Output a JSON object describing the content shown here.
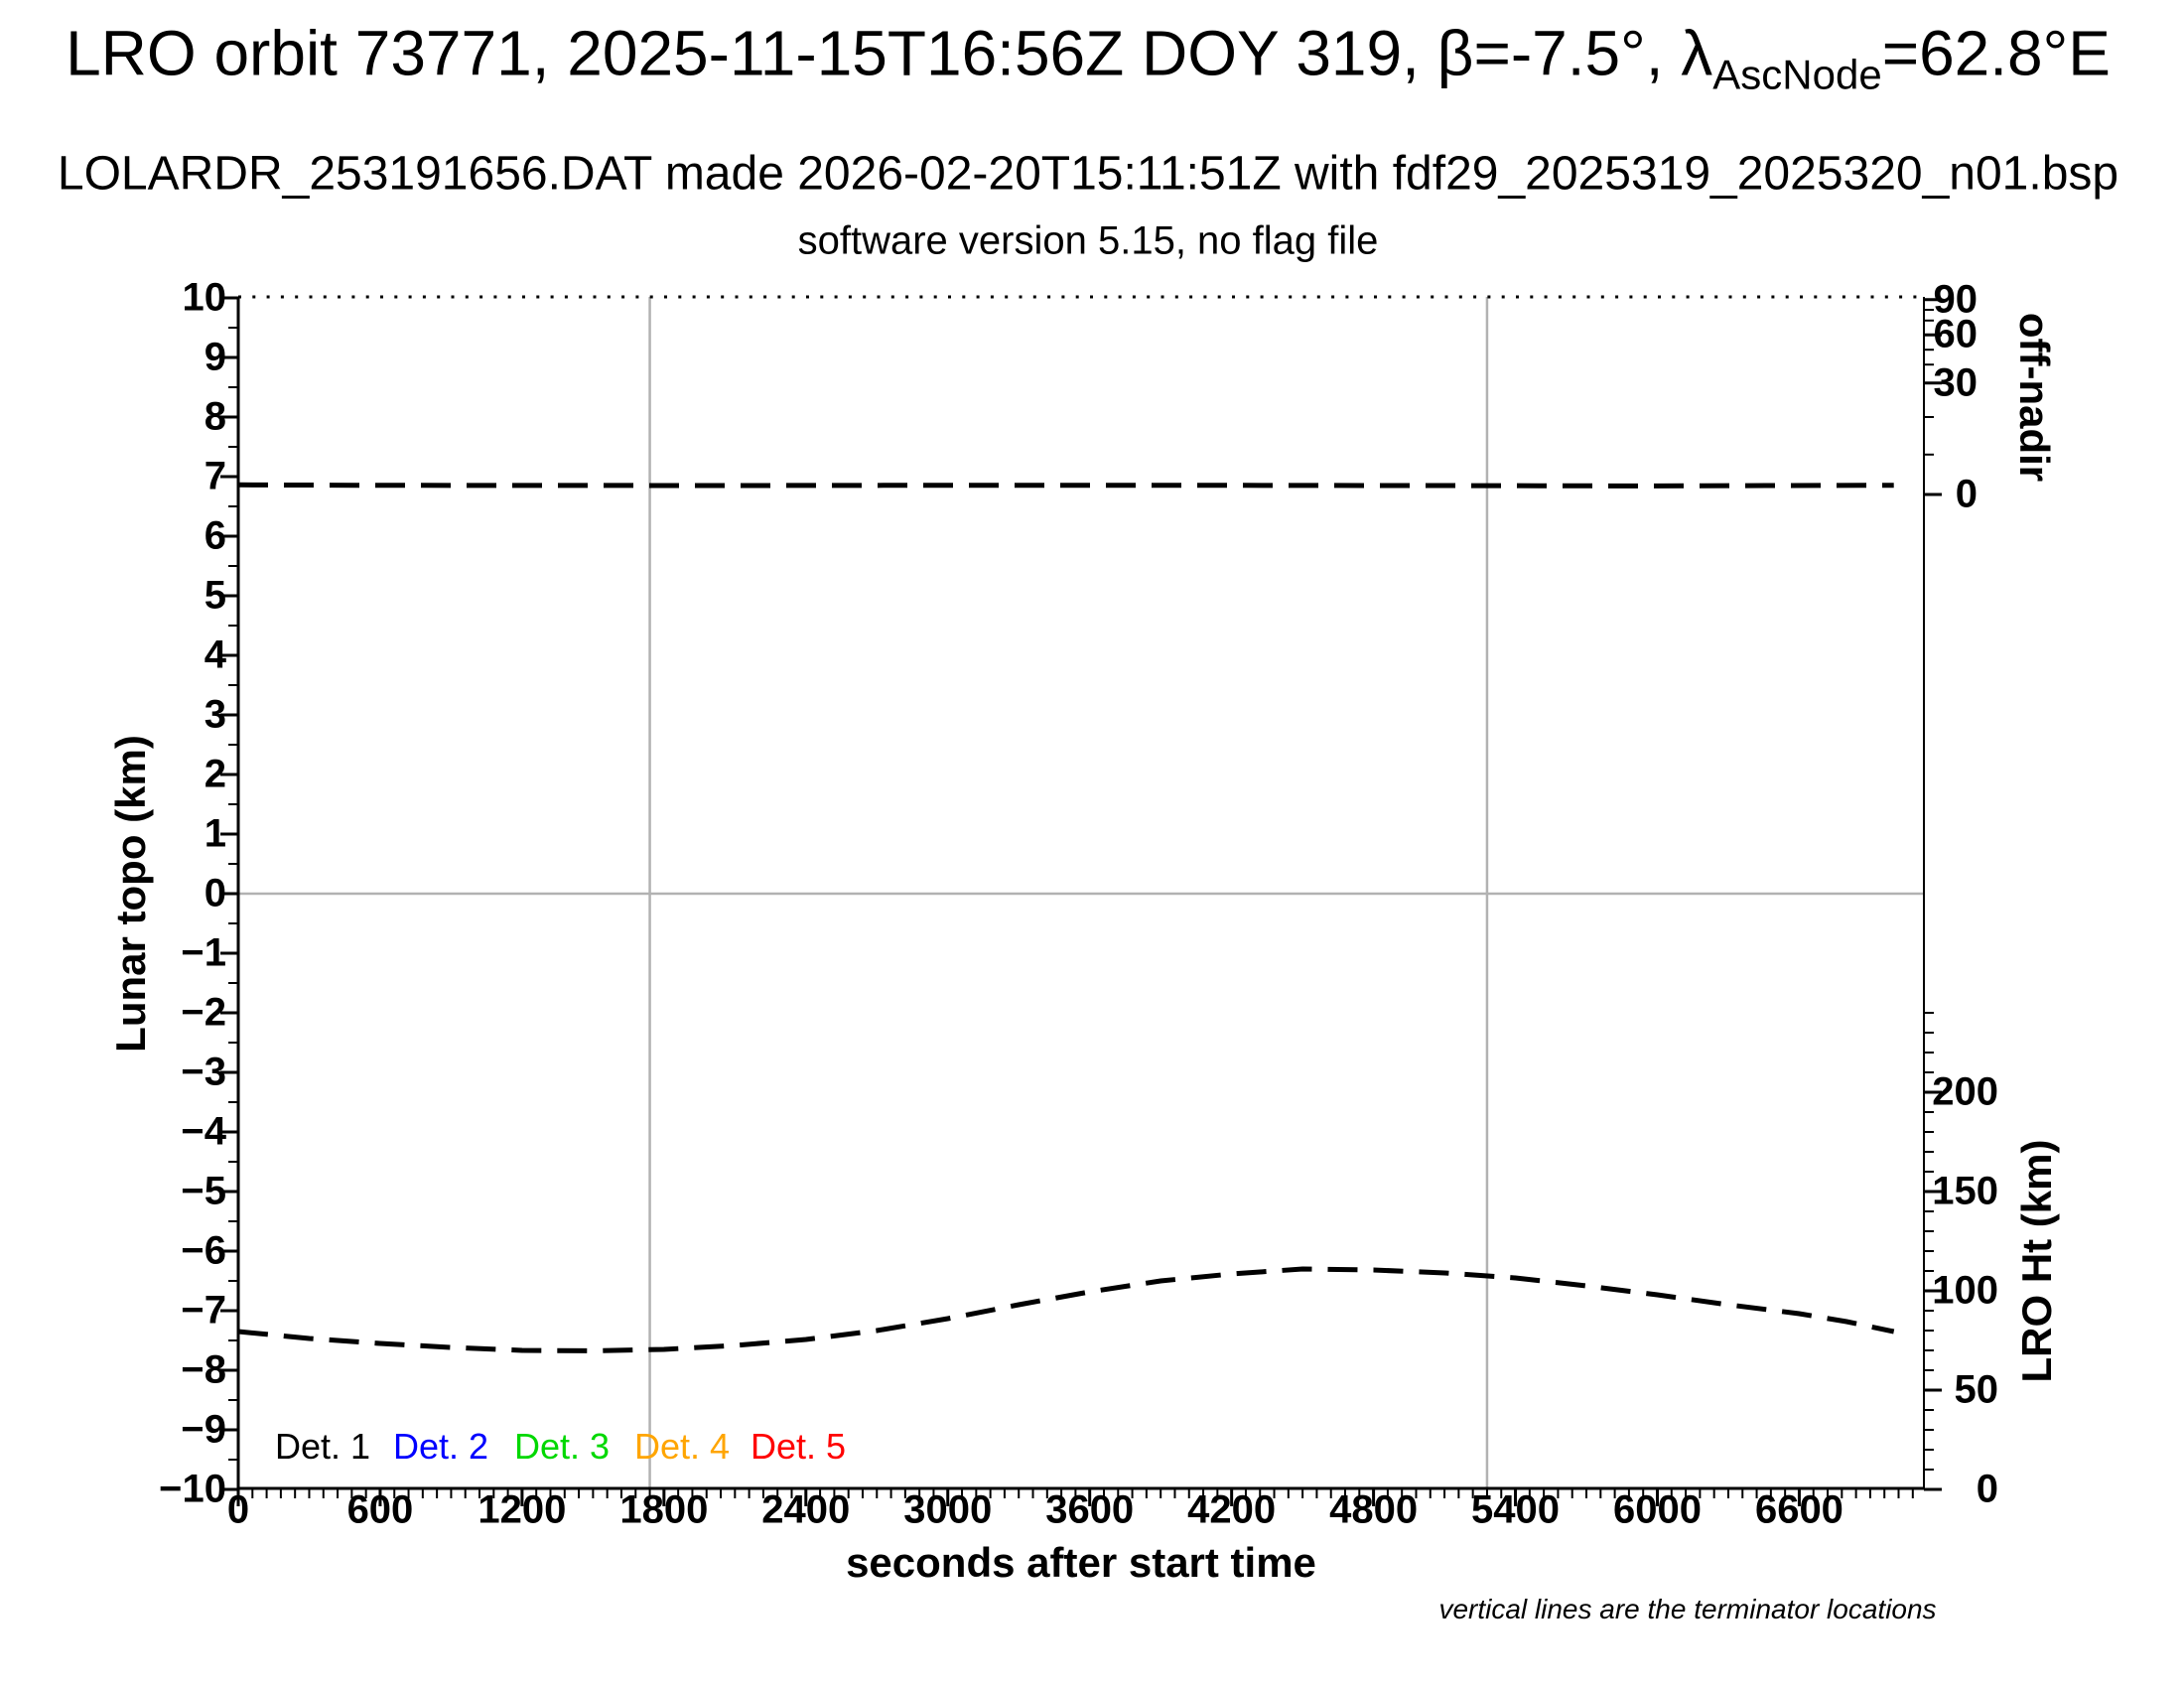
{
  "header": {
    "title_prefix": "LRO orbit 73771, 2025-11-15T16:56Z DOY 319, β=-7.5°, λ",
    "title_sub": "AscNode",
    "title_suffix": "=62.8°E",
    "subtitle1": "LOLARDR_253191656.DAT made 2026-02-20T15:11:51Z with fdf29_2025319_2025320_n01.bsp",
    "subtitle2": "software version 5.15, no flag file"
  },
  "axes": {
    "left_label": "Lunar topo (km)",
    "right_top_label": "off-nadir",
    "right_bottom_label": "LRO Ht (km)",
    "x_label": "seconds after start time"
  },
  "footnote": "vertical lines are the terminator locations",
  "legend": {
    "items": [
      {
        "label": "Det. 1",
        "color": "#000000"
      },
      {
        "label": "Det. 2",
        "color": "#0000ff"
      },
      {
        "label": "Det. 3",
        "color": "#00d800"
      },
      {
        "label": "Det. 4",
        "color": "#ffa500"
      },
      {
        "label": "Det. 5",
        "color": "#ff0000"
      }
    ]
  },
  "chart_data": {
    "type": "line",
    "title": "LRO orbit 73771, 2025-11-15T16:56Z DOY 319, β=-7.5°, λAscNode=62.8°E",
    "xlabel": "seconds after start time",
    "ylabel_left": "Lunar topo (km)",
    "ylabel_right_top": "off-nadir",
    "ylabel_right_bottom": "LRO Ht (km)",
    "grid": false,
    "xlim": [
      0,
      7127
    ],
    "ylim_left": [
      -10,
      10
    ],
    "x_ticks": [
      0,
      600,
      1200,
      1800,
      2400,
      3000,
      3600,
      4200,
      4800,
      5400,
      6000,
      6600
    ],
    "x_minor_step": 60,
    "left_ticks": [
      -10,
      -9,
      -8,
      -7,
      -6,
      -5,
      -4,
      -3,
      -2,
      -1,
      0,
      1,
      2,
      3,
      4,
      5,
      6,
      7,
      8,
      9,
      10
    ],
    "left_minor_step": 0.5,
    "off_nadir_axis": {
      "note": "nonlinear secondary axis, positions given as equivalent left-axis (topo) coordinate",
      "ticks": [
        {
          "deg": 90,
          "topo": 9.97,
          "major": true
        },
        {
          "deg": 80,
          "topo": 9.8,
          "major": false
        },
        {
          "deg": 70,
          "topo": 9.62,
          "major": false
        },
        {
          "deg": 60,
          "topo": 9.38,
          "major": true
        },
        {
          "deg": 50,
          "topo": 9.13,
          "major": false
        },
        {
          "deg": 40,
          "topo": 8.88,
          "major": false
        },
        {
          "deg": 30,
          "topo": 8.57,
          "major": true
        },
        {
          "deg": 20,
          "topo": 8.0,
          "major": false
        },
        {
          "deg": 10,
          "topo": 7.37,
          "major": false
        },
        {
          "deg": 0,
          "topo": 6.7,
          "major": true
        }
      ],
      "deg_per_topo_near_zero": 16.07
    },
    "lro_ht_axis": {
      "note": "linear secondary axis: topo = km/30 - 10",
      "major_ticks_km": [
        0,
        50,
        100,
        150,
        200
      ],
      "minor_step_km": 10,
      "minor_max_km": 240
    },
    "terminator_lines_sec": [
      1740,
      5280
    ],
    "series": [
      {
        "name": "spacecraft off-nadir angle",
        "axis": "off-nadir (deg)",
        "style": "dashed",
        "color": "#000000",
        "points_t_deg": [
          [
            0,
            2.6
          ],
          [
            500,
            2.5
          ],
          [
            1000,
            2.45
          ],
          [
            1500,
            2.45
          ],
          [
            2000,
            2.4
          ],
          [
            2500,
            2.45
          ],
          [
            3000,
            2.5
          ],
          [
            3500,
            2.5
          ],
          [
            4000,
            2.5
          ],
          [
            4500,
            2.45
          ],
          [
            5000,
            2.4
          ],
          [
            5500,
            2.35
          ],
          [
            6000,
            2.3
          ],
          [
            6500,
            2.4
          ],
          [
            7000,
            2.5
          ]
        ]
      },
      {
        "name": "LRO height above surface",
        "axis": "LRO Ht (km)",
        "style": "dashed",
        "color": "#000000",
        "points_t_km": [
          [
            0,
            79.5
          ],
          [
            300,
            76
          ],
          [
            600,
            73.5
          ],
          [
            900,
            71.5
          ],
          [
            1200,
            70
          ],
          [
            1500,
            69.8
          ],
          [
            1800,
            70.5
          ],
          [
            2100,
            72.5
          ],
          [
            2400,
            75.5
          ],
          [
            2700,
            80
          ],
          [
            3000,
            86
          ],
          [
            3300,
            93
          ],
          [
            3600,
            99.5
          ],
          [
            3900,
            105
          ],
          [
            4200,
            108.5
          ],
          [
            4500,
            111
          ],
          [
            4800,
            110.5
          ],
          [
            5100,
            109
          ],
          [
            5400,
            106.5
          ],
          [
            5700,
            102.5
          ],
          [
            6000,
            98
          ],
          [
            6300,
            93
          ],
          [
            6600,
            88.5
          ],
          [
            6800,
            84.5
          ],
          [
            7000,
            79.5
          ]
        ]
      }
    ],
    "colors": {
      "det1": "#000000",
      "det2": "#0000ff",
      "det3": "#00d800",
      "det4": "#ffa500",
      "det5": "#ff0000",
      "terminator_line": "#b2b2b2",
      "zero_line": "#b2b2b2",
      "frame": "#000000"
    }
  }
}
